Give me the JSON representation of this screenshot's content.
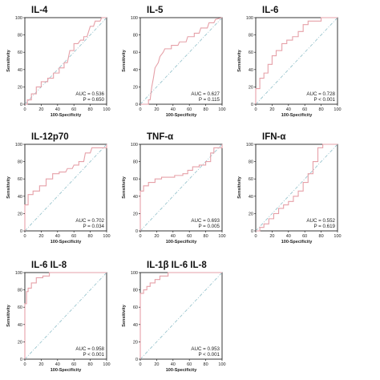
{
  "chart_data": [
    {
      "type": "line",
      "title": "IL-4",
      "xlabel": "100-Specificity",
      "ylabel": "Sensitivity",
      "xlim": [
        0,
        100
      ],
      "ylim": [
        0,
        100
      ],
      "ticks": [
        0,
        20,
        40,
        60,
        80,
        100
      ],
      "auc_text": "AUC = 0.536",
      "p_text": "P = 0.650",
      "roc": [
        [
          0,
          0
        ],
        [
          3,
          0
        ],
        [
          3,
          5
        ],
        [
          8,
          5
        ],
        [
          8,
          12
        ],
        [
          14,
          12
        ],
        [
          14,
          20
        ],
        [
          20,
          20
        ],
        [
          20,
          26
        ],
        [
          28,
          26
        ],
        [
          28,
          30
        ],
        [
          35,
          30
        ],
        [
          35,
          36
        ],
        [
          42,
          36
        ],
        [
          42,
          42
        ],
        [
          48,
          42
        ],
        [
          48,
          48
        ],
        [
          52,
          48
        ],
        [
          55,
          62
        ],
        [
          60,
          62
        ],
        [
          60,
          70
        ],
        [
          65,
          70
        ],
        [
          68,
          74
        ],
        [
          72,
          74
        ],
        [
          72,
          78
        ],
        [
          76,
          78
        ],
        [
          80,
          90
        ],
        [
          84,
          90
        ],
        [
          86,
          96
        ],
        [
          92,
          96
        ],
        [
          94,
          100
        ],
        [
          100,
          100
        ]
      ],
      "reference": [
        [
          0,
          0
        ],
        [
          100,
          100
        ]
      ]
    },
    {
      "type": "line",
      "title": "IL-5",
      "xlabel": "100-Specificity",
      "ylabel": "Sensitivity",
      "xlim": [
        0,
        100
      ],
      "ylim": [
        0,
        100
      ],
      "ticks": [
        0,
        20,
        40,
        60,
        80,
        100
      ],
      "auc_text": "AUC = 0.627",
      "p_text": "P = 0.115",
      "roc": [
        [
          0,
          0
        ],
        [
          10,
          0
        ],
        [
          10,
          5
        ],
        [
          12,
          5
        ],
        [
          14,
          20
        ],
        [
          16,
          30
        ],
        [
          18,
          42
        ],
        [
          22,
          48
        ],
        [
          24,
          55
        ],
        [
          28,
          60
        ],
        [
          30,
          64
        ],
        [
          38,
          64
        ],
        [
          38,
          68
        ],
        [
          46,
          68
        ],
        [
          48,
          72
        ],
        [
          56,
          72
        ],
        [
          58,
          78
        ],
        [
          66,
          78
        ],
        [
          66,
          82
        ],
        [
          72,
          82
        ],
        [
          74,
          88
        ],
        [
          82,
          88
        ],
        [
          84,
          94
        ],
        [
          90,
          94
        ],
        [
          92,
          98
        ],
        [
          100,
          100
        ]
      ],
      "reference": [
        [
          0,
          0
        ],
        [
          100,
          100
        ]
      ]
    },
    {
      "type": "line",
      "title": "IL-6",
      "xlabel": "100-Specificity",
      "ylabel": "Sensitivity",
      "xlim": [
        0,
        100
      ],
      "ylim": [
        0,
        100
      ],
      "ticks": [
        0,
        20,
        40,
        60,
        80,
        100
      ],
      "auc_text": "AUC = 0.728",
      "p_text": "P < 0.001",
      "roc": [
        [
          0,
          0
        ],
        [
          0,
          18
        ],
        [
          5,
          18
        ],
        [
          5,
          30
        ],
        [
          10,
          30
        ],
        [
          10,
          36
        ],
        [
          15,
          36
        ],
        [
          15,
          46
        ],
        [
          20,
          46
        ],
        [
          20,
          56
        ],
        [
          25,
          56
        ],
        [
          25,
          62
        ],
        [
          32,
          62
        ],
        [
          32,
          70
        ],
        [
          38,
          70
        ],
        [
          38,
          74
        ],
        [
          45,
          74
        ],
        [
          45,
          78
        ],
        [
          52,
          78
        ],
        [
          52,
          84
        ],
        [
          58,
          84
        ],
        [
          58,
          92
        ],
        [
          64,
          92
        ],
        [
          64,
          96
        ],
        [
          80,
          96
        ],
        [
          80,
          100
        ],
        [
          100,
          100
        ]
      ],
      "reference": [
        [
          0,
          0
        ],
        [
          100,
          100
        ]
      ]
    },
    {
      "type": "line",
      "title": "IL-12p70",
      "xlabel": "100-Specificity",
      "ylabel": "Sensitivity",
      "xlim": [
        0,
        100
      ],
      "ylim": [
        0,
        100
      ],
      "ticks": [
        0,
        20,
        40,
        60,
        80,
        100
      ],
      "auc_text": "AUC = 0.702",
      "p_text": "P = 0.034",
      "roc": [
        [
          0,
          0
        ],
        [
          0,
          30
        ],
        [
          4,
          30
        ],
        [
          4,
          42
        ],
        [
          10,
          42
        ],
        [
          10,
          46
        ],
        [
          18,
          46
        ],
        [
          18,
          52
        ],
        [
          26,
          52
        ],
        [
          26,
          60
        ],
        [
          34,
          60
        ],
        [
          34,
          66
        ],
        [
          42,
          66
        ],
        [
          42,
          68
        ],
        [
          50,
          68
        ],
        [
          52,
          72
        ],
        [
          58,
          72
        ],
        [
          60,
          76
        ],
        [
          66,
          76
        ],
        [
          66,
          80
        ],
        [
          72,
          80
        ],
        [
          74,
          90
        ],
        [
          80,
          90
        ],
        [
          82,
          96
        ],
        [
          100,
          96
        ],
        [
          100,
          100
        ]
      ],
      "reference": [
        [
          0,
          0
        ],
        [
          100,
          100
        ]
      ]
    },
    {
      "type": "line",
      "title": "TNF-α",
      "xlabel": "100-Specificity",
      "ylabel": "Sensitivity",
      "xlim": [
        0,
        100
      ],
      "ylim": [
        0,
        100
      ],
      "ticks": [
        0,
        20,
        40,
        60,
        80,
        100
      ],
      "auc_text": "AUC = 0.693",
      "p_text": "P = 0.005",
      "roc": [
        [
          0,
          0
        ],
        [
          0,
          46
        ],
        [
          4,
          46
        ],
        [
          4,
          52
        ],
        [
          10,
          52
        ],
        [
          10,
          56
        ],
        [
          18,
          56
        ],
        [
          18,
          60
        ],
        [
          26,
          60
        ],
        [
          26,
          62
        ],
        [
          42,
          62
        ],
        [
          42,
          64
        ],
        [
          52,
          64
        ],
        [
          52,
          66
        ],
        [
          58,
          66
        ],
        [
          58,
          70
        ],
        [
          64,
          70
        ],
        [
          64,
          74
        ],
        [
          72,
          74
        ],
        [
          72,
          76
        ],
        [
          80,
          76
        ],
        [
          80,
          80
        ],
        [
          86,
          80
        ],
        [
          86,
          90
        ],
        [
          90,
          90
        ],
        [
          90,
          96
        ],
        [
          100,
          96
        ],
        [
          100,
          100
        ]
      ],
      "reference": [
        [
          0,
          0
        ],
        [
          100,
          100
        ]
      ]
    },
    {
      "type": "line",
      "title": "IFN-α",
      "xlabel": "100-Specificity",
      "ylabel": "Sensitivity",
      "xlim": [
        0,
        100
      ],
      "ylim": [
        0,
        100
      ],
      "ticks": [
        0,
        20,
        40,
        60,
        80,
        100
      ],
      "auc_text": "AUC = 0.552",
      "p_text": "P = 0.619",
      "roc": [
        [
          0,
          0
        ],
        [
          5,
          0
        ],
        [
          5,
          4
        ],
        [
          10,
          4
        ],
        [
          10,
          8
        ],
        [
          16,
          8
        ],
        [
          16,
          14
        ],
        [
          22,
          14
        ],
        [
          22,
          20
        ],
        [
          28,
          20
        ],
        [
          28,
          26
        ],
        [
          34,
          26
        ],
        [
          34,
          30
        ],
        [
          40,
          30
        ],
        [
          40,
          34
        ],
        [
          46,
          34
        ],
        [
          46,
          40
        ],
        [
          52,
          40
        ],
        [
          52,
          46
        ],
        [
          58,
          46
        ],
        [
          58,
          56
        ],
        [
          64,
          56
        ],
        [
          64,
          66
        ],
        [
          70,
          66
        ],
        [
          70,
          80
        ],
        [
          76,
          80
        ],
        [
          76,
          96
        ],
        [
          82,
          96
        ],
        [
          82,
          100
        ],
        [
          100,
          100
        ]
      ],
      "reference": [
        [
          0,
          0
        ],
        [
          100,
          100
        ]
      ]
    },
    {
      "type": "line",
      "title": "IL-6 IL-8",
      "xlabel": "100-Specificity",
      "ylabel": "Sensitivity",
      "xlim": [
        0,
        100
      ],
      "ylim": [
        0,
        100
      ],
      "ticks": [
        0,
        20,
        40,
        60,
        80,
        100
      ],
      "auc_text": "AUC = 0.958",
      "p_text": "P < 0.001",
      "roc": [
        [
          0,
          0
        ],
        [
          0,
          64
        ],
        [
          2,
          64
        ],
        [
          2,
          78
        ],
        [
          4,
          78
        ],
        [
          4,
          82
        ],
        [
          8,
          82
        ],
        [
          8,
          88
        ],
        [
          14,
          88
        ],
        [
          14,
          94
        ],
        [
          22,
          94
        ],
        [
          22,
          96
        ],
        [
          30,
          96
        ],
        [
          30,
          100
        ],
        [
          100,
          100
        ]
      ],
      "reference": [
        [
          0,
          0
        ],
        [
          100,
          100
        ]
      ]
    },
    {
      "type": "line",
      "title": "IL-1β IL-6 IL-8",
      "xlabel": "100-Specificity",
      "ylabel": "Sensitivity",
      "xlim": [
        0,
        100
      ],
      "ylim": [
        0,
        100
      ],
      "ticks": [
        0,
        20,
        40,
        60,
        80,
        100
      ],
      "auc_text": "AUC = 0.953",
      "p_text": "P < 0.001",
      "roc": [
        [
          0,
          0
        ],
        [
          0,
          76
        ],
        [
          4,
          76
        ],
        [
          4,
          80
        ],
        [
          8,
          80
        ],
        [
          8,
          84
        ],
        [
          12,
          84
        ],
        [
          12,
          88
        ],
        [
          18,
          88
        ],
        [
          18,
          92
        ],
        [
          24,
          92
        ],
        [
          24,
          96
        ],
        [
          34,
          96
        ],
        [
          34,
          100
        ],
        [
          100,
          100
        ]
      ],
      "reference": [
        [
          0,
          0
        ],
        [
          100,
          100
        ]
      ]
    }
  ],
  "colors": {
    "roc_line": "#e6a0a8",
    "reference_line": "#8fbfc9",
    "axis": "#222222"
  }
}
